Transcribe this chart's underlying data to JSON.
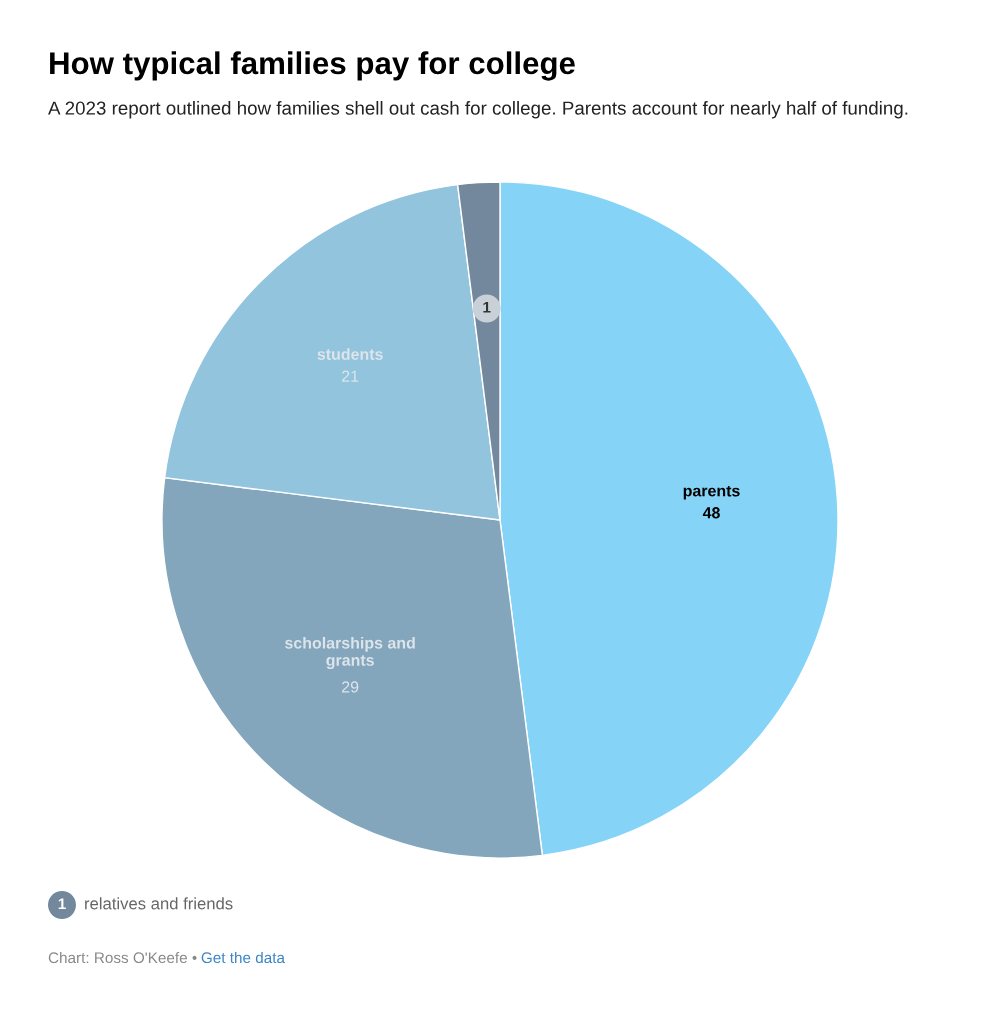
{
  "chart_data": {
    "type": "pie",
    "title": "How typical families pay for college",
    "subtitle": "A 2023 report outlined how families shell out cash for college. Parents account for nearly half of funding.",
    "categories": [
      "parents",
      "scholarships and grants",
      "students",
      "relatives and friends"
    ],
    "values": [
      48,
      29,
      21,
      2
    ],
    "colors": [
      "#85d4f8",
      "#83a6bd",
      "#93c4de",
      "#73889d"
    ],
    "value_labels": [
      "48",
      "29",
      "21",
      null
    ],
    "annotations": [
      "1",
      "Chart: Ross O'Keefe •",
      "Get the data"
    ]
  }
}
